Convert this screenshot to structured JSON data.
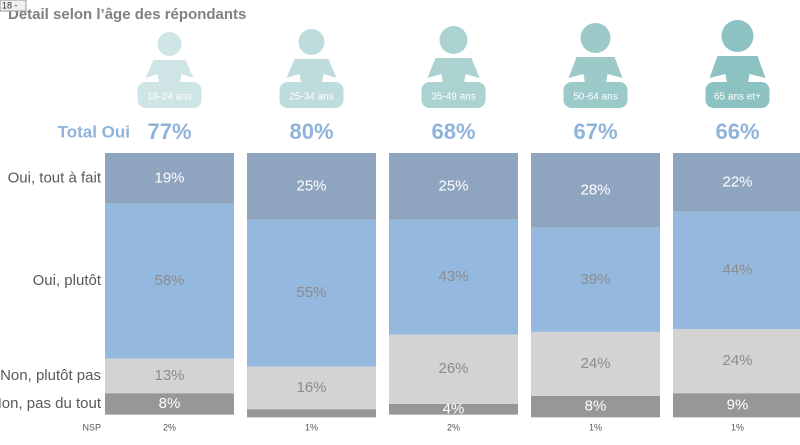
{
  "chart_data": {
    "type": "stacked-bar",
    "tag": "18 -",
    "title": "Détail selon l’âge des répondants",
    "categories": [
      "18-24 ans",
      "25-34 ans",
      "35-49 ans",
      "50-64 ans",
      "65 ans et+"
    ],
    "total": {
      "label": "Total Oui",
      "values": [
        77,
        80,
        68,
        67,
        66
      ],
      "value_labels": [
        "77%",
        "80%",
        "68%",
        "67%",
        "66%"
      ]
    },
    "ylim": [
      0,
      100
    ],
    "series": [
      {
        "name": "Oui, tout à fait",
        "color": "#8fa4bf",
        "values": [
          19,
          25,
          25,
          28,
          22
        ],
        "value_labels": [
          "19%",
          "25%",
          "25%",
          "28%",
          "22%"
        ]
      },
      {
        "name": "Oui, plutôt",
        "color": "#95b8de",
        "values": [
          58,
          55,
          43,
          39,
          44
        ],
        "value_labels": [
          "58%",
          "55%",
          "43%",
          "39%",
          "44%"
        ]
      },
      {
        "name": "Non, plutôt pas",
        "color": "#d3d3d3",
        "values": [
          13,
          16,
          26,
          24,
          24
        ],
        "value_labels": [
          "13%",
          "16%",
          "26%",
          "24%",
          "24%"
        ]
      },
      {
        "name": "Non, pas du tout",
        "color": "#979797",
        "values": [
          8,
          3,
          4,
          8,
          9
        ],
        "value_labels": [
          "8%",
          null,
          "4%",
          "8%",
          "9%"
        ]
      }
    ],
    "nsp": {
      "label": "NSP",
      "values": [
        2,
        1,
        2,
        1,
        1
      ],
      "value_labels": [
        "2%",
        "1%",
        "2%",
        "1%",
        "1%"
      ]
    }
  }
}
